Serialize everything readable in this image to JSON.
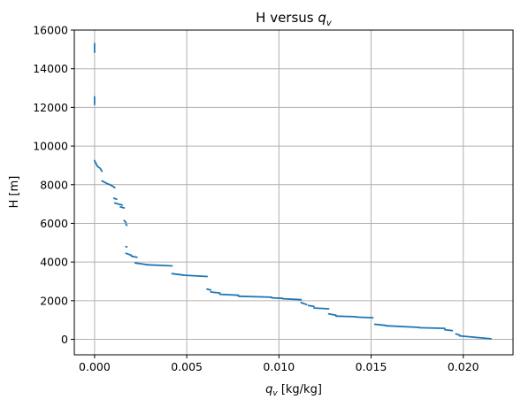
{
  "chart_data": {
    "type": "scatter",
    "title_main": "H versus ",
    "title_sym": "q",
    "title_sub": "v",
    "xlabel_sym": "q",
    "xlabel_sub": "v",
    "xlabel_unit": " [kg/kg]",
    "ylabel": "H [m]",
    "xlim": [
      -0.0011,
      0.0227
    ],
    "ylim": [
      -800,
      16000
    ],
    "grid": true,
    "xticks": [
      0.0,
      0.005,
      0.01,
      0.015,
      0.02
    ],
    "xtick_labels": [
      "0.000",
      "0.005",
      "0.010",
      "0.015",
      "0.020"
    ],
    "yticks": [
      0,
      2000,
      4000,
      6000,
      8000,
      10000,
      12000,
      14000,
      16000
    ],
    "ytick_labels": [
      "0",
      "2000",
      "4000",
      "6000",
      "8000",
      "10000",
      "12000",
      "14000",
      "16000"
    ],
    "color": "#1f77b4",
    "segments": [
      [
        [
          0.0,
          15300
        ],
        [
          0.0,
          14850
        ]
      ],
      [
        [
          0.0,
          12550
        ],
        [
          0.0,
          12150
        ]
      ],
      [
        [
          0.0,
          9250
        ],
        [
          0.00015,
          8950
        ],
        [
          0.0003,
          8850
        ],
        [
          0.0004,
          8700
        ]
      ],
      [
        [
          0.0004,
          8200
        ],
        [
          0.0007,
          8050
        ],
        [
          0.00085,
          8000
        ],
        [
          0.0011,
          7850
        ]
      ],
      [
        [
          0.00105,
          7300
        ],
        [
          0.0012,
          7250
        ]
      ],
      [
        [
          0.0011,
          7050
        ],
        [
          0.0015,
          6950
        ]
      ],
      [
        [
          0.0014,
          6850
        ],
        [
          0.0016,
          6800
        ]
      ],
      [
        [
          0.0016,
          6150
        ],
        [
          0.0017,
          6050
        ]
      ],
      [
        [
          0.0017,
          5950
        ],
        [
          0.00175,
          5900
        ]
      ],
      [
        [
          0.0017,
          4800
        ],
        [
          0.00175,
          4780
        ]
      ],
      [
        [
          0.0017,
          4450
        ],
        [
          0.002,
          4350
        ]
      ],
      [
        [
          0.002,
          4300
        ],
        [
          0.0023,
          4250
        ]
      ],
      [
        [
          0.0022,
          3950
        ],
        [
          0.0028,
          3870
        ]
      ],
      [
        [
          0.0028,
          3860
        ],
        [
          0.0042,
          3800
        ]
      ],
      [
        [
          0.0042,
          3400
        ],
        [
          0.0048,
          3330
        ]
      ],
      [
        [
          0.0048,
          3320
        ],
        [
          0.0061,
          3250
        ]
      ],
      [
        [
          0.0061,
          2600
        ],
        [
          0.0063,
          2550
        ]
      ],
      [
        [
          0.0063,
          2450
        ],
        [
          0.0068,
          2400
        ]
      ],
      [
        [
          0.0068,
          2330
        ],
        [
          0.0078,
          2280
        ]
      ],
      [
        [
          0.0078,
          2230
        ],
        [
          0.0096,
          2180
        ]
      ],
      [
        [
          0.0096,
          2150
        ],
        [
          0.0102,
          2120
        ]
      ],
      [
        [
          0.0102,
          2100
        ],
        [
          0.0112,
          2050
        ]
      ],
      [
        [
          0.0112,
          1900
        ],
        [
          0.0115,
          1800
        ]
      ],
      [
        [
          0.0116,
          1750
        ],
        [
          0.0119,
          1700
        ]
      ],
      [
        [
          0.0119,
          1620
        ],
        [
          0.0127,
          1580
        ]
      ],
      [
        [
          0.0127,
          1320
        ],
        [
          0.0131,
          1250
        ]
      ],
      [
        [
          0.0131,
          1200
        ],
        [
          0.0142,
          1170
        ]
      ],
      [
        [
          0.0142,
          1150
        ],
        [
          0.0151,
          1120
        ]
      ],
      [
        [
          0.0152,
          780
        ],
        [
          0.0158,
          720
        ]
      ],
      [
        [
          0.0158,
          700
        ],
        [
          0.0176,
          620
        ]
      ],
      [
        [
          0.0176,
          600
        ],
        [
          0.019,
          570
        ]
      ],
      [
        [
          0.019,
          500
        ],
        [
          0.0194,
          450
        ]
      ],
      [
        [
          0.0196,
          280
        ],
        [
          0.0198,
          220
        ]
      ],
      [
        [
          0.0198,
          180
        ],
        [
          0.0215,
          30
        ]
      ]
    ]
  }
}
